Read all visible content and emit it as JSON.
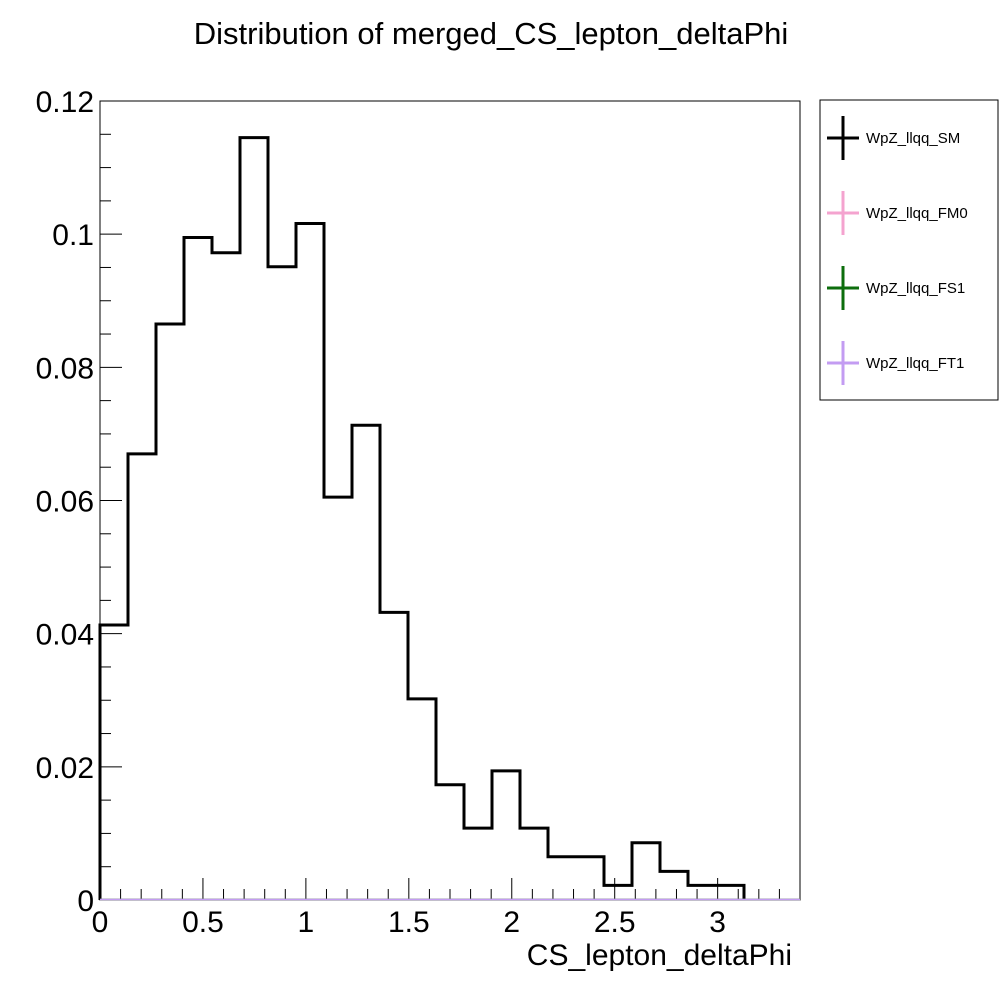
{
  "chart_data": {
    "type": "histogram",
    "title": "Distribution of merged_CS_lepton_deltaPhi",
    "xlabel": "CS_lepton_deltaPhi",
    "ylabel": "",
    "xlim": [
      0,
      3.4
    ],
    "ylim": [
      0,
      0.12
    ],
    "x_ticks": [
      0,
      0.5,
      1,
      1.5,
      2,
      2.5,
      3
    ],
    "x_tick_labels": [
      "0",
      "0.5",
      "1",
      "1.5",
      "2",
      "2.5",
      "3"
    ],
    "y_ticks": [
      0,
      0.02,
      0.04,
      0.06,
      0.08,
      0.1,
      0.12
    ],
    "y_tick_labels": [
      "0",
      "0.02",
      "0.04",
      "0.06",
      "0.08",
      "0.1",
      "0.12"
    ],
    "grid": false,
    "legend_position": "outside-right-top",
    "bin_edges": [
      0,
      0.136,
      0.272,
      0.408,
      0.544,
      0.68,
      0.816,
      0.952,
      1.088,
      1.224,
      1.36,
      1.496,
      1.632,
      1.768,
      1.904,
      2.04,
      2.176,
      2.312,
      2.448,
      2.584,
      2.72,
      2.856,
      2.992,
      3.128
    ],
    "series": [
      {
        "name": "WpZ_llqq_SM",
        "color": "#000000",
        "values": [
          0.0413,
          0.067,
          0.0865,
          0.0995,
          0.0972,
          0.1145,
          0.0951,
          0.1016,
          0.0605,
          0.0713,
          0.0432,
          0.0302,
          0.0173,
          0.0108,
          0.0194,
          0.0108,
          0.0065,
          0.0065,
          0.0022,
          0.0086,
          0.0043,
          0.0022,
          0.0022
        ]
      },
      {
        "name": "WpZ_llqq_FM0",
        "color": "#f4a3cf",
        "values": []
      },
      {
        "name": "WpZ_llqq_FS1",
        "color": "#0d6e0d",
        "values": []
      },
      {
        "name": "WpZ_llqq_FT1",
        "color": "#c39cf2",
        "values": []
      }
    ]
  }
}
